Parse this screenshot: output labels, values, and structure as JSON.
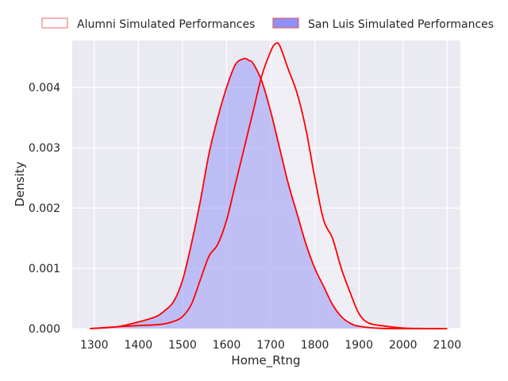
{
  "chart_data": {
    "type": "area",
    "title": "",
    "xlabel": "Home_Rtng",
    "ylabel": "Density",
    "xlim": [
      1250,
      2130
    ],
    "ylim": [
      0,
      0.00478
    ],
    "xticks": [
      1300,
      1400,
      1500,
      1600,
      1700,
      1800,
      1900,
      2000,
      2100
    ],
    "xtick_labels": [
      "1300",
      "1400",
      "1500",
      "1600",
      "1700",
      "1800",
      "1900",
      "2000",
      "2100"
    ],
    "yticks": [
      0,
      0.001,
      0.002,
      0.003,
      0.004
    ],
    "ytick_labels": [
      "0.000",
      "0.001",
      "0.002",
      "0.003",
      "0.004"
    ],
    "grid": true,
    "legend_position": "top-center, above plot",
    "series": [
      {
        "name": "Alumni Simulated Performances",
        "fill_color": "#f3f0f8",
        "fill_opacity": 0.55,
        "legend_edge_color": "#f08080",
        "line_color": "#ff0000",
        "x": [
          1290,
          1350,
          1400,
          1450,
          1480,
          1500,
          1520,
          1540,
          1560,
          1580,
          1600,
          1620,
          1640,
          1660,
          1680,
          1700,
          1710,
          1720,
          1740,
          1760,
          1780,
          1800,
          1820,
          1840,
          1860,
          1880,
          1900,
          1920,
          1950,
          2000,
          2050,
          2100
        ],
        "values": [
          0.0,
          3e-05,
          5e-05,
          7e-05,
          0.00012,
          0.0002,
          0.0004,
          0.0008,
          0.0012,
          0.0014,
          0.0018,
          0.0024,
          0.003,
          0.0036,
          0.0042,
          0.0046,
          0.00472,
          0.0047,
          0.0043,
          0.0039,
          0.0033,
          0.0025,
          0.0018,
          0.0015,
          0.001,
          0.0006,
          0.00025,
          0.0001,
          5e-05,
          1e-05,
          2e-06,
          0.0
        ]
      },
      {
        "name": "San Luis Simulated Performances",
        "fill_color": "#8f8ff8",
        "fill_opacity": 0.5,
        "legend_edge_color": "#e06070",
        "line_color": "#ff0000",
        "x": [
          1290,
          1350,
          1400,
          1440,
          1460,
          1480,
          1500,
          1520,
          1540,
          1560,
          1580,
          1600,
          1620,
          1640,
          1650,
          1660,
          1680,
          1700,
          1720,
          1740,
          1760,
          1780,
          1800,
          1820,
          1840,
          1860,
          1880,
          1900,
          1950,
          2000,
          2050,
          2100
        ],
        "values": [
          0.0,
          3e-05,
          0.00011,
          0.0002,
          0.0003,
          0.00045,
          0.0008,
          0.0014,
          0.0021,
          0.0029,
          0.0035,
          0.004,
          0.00438,
          0.00448,
          0.00445,
          0.0044,
          0.0041,
          0.0036,
          0.003,
          0.0024,
          0.0019,
          0.0014,
          0.001,
          0.0007,
          0.0004,
          0.0002,
          9e-05,
          4e-05,
          4e-06,
          5e-07,
          0.0,
          0.0
        ]
      }
    ]
  }
}
